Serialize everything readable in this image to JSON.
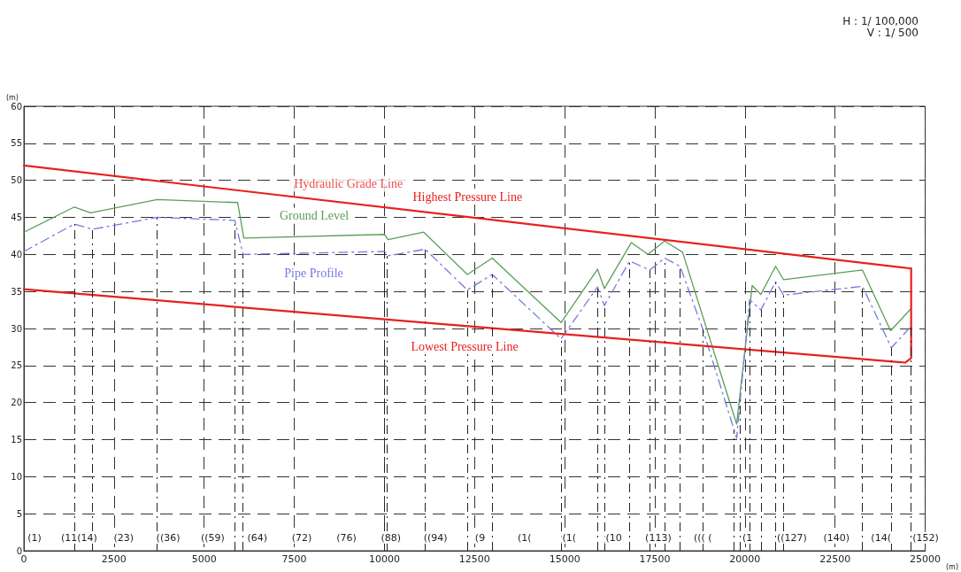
{
  "chart_data": {
    "type": "line",
    "xlabel": "(m)",
    "ylabel": "(m)",
    "xlim": [
      0,
      25000
    ],
    "xticks": [
      0,
      2500,
      5000,
      7500,
      10000,
      12500,
      15000,
      17500,
      20000,
      22500,
      25000
    ],
    "ylim": [
      0,
      60
    ],
    "yticks": [
      0,
      5,
      10,
      15,
      20,
      25,
      30,
      35,
      40,
      45,
      50,
      55,
      60
    ],
    "grid": true,
    "legend": false,
    "marker": "none",
    "series": [
      {
        "name": "Ground Level",
        "color": "#5a9e5a",
        "line_style": "solid",
        "x": [
          0,
          1400,
          1850,
          3700,
          5930,
          6100,
          10000,
          10100,
          11090,
          12300,
          12990,
          14900,
          15910,
          16100,
          16850,
          17310,
          17770,
          18270,
          19770,
          20200,
          20440,
          20850,
          21070,
          23260,
          24040,
          24590
        ],
        "values": [
          43,
          46.4,
          45.6,
          47.4,
          47.0,
          42.2,
          42.7,
          42.0,
          43.0,
          37.3,
          39.5,
          30.8,
          38.0,
          35.4,
          41.6,
          40.0,
          41.8,
          40.3,
          17.1,
          35.8,
          34.6,
          38.4,
          36.6,
          37.9,
          29.7,
          32.6
        ]
      },
      {
        "name": "Pipe Profile",
        "color": "#7878e0",
        "line_style": "dashed",
        "x": [
          0,
          1400,
          1900,
          3700,
          5850,
          6080,
          10000,
          10080,
          11130,
          12300,
          12990,
          14900,
          15910,
          16100,
          16800,
          17360,
          17770,
          18200,
          18830,
          19770,
          20130,
          20440,
          20850,
          21070,
          23260,
          24060,
          24610
        ],
        "values": [
          40.4,
          44.1,
          43.4,
          45.0,
          44.6,
          40.0,
          40.4,
          39.8,
          40.7,
          35.2,
          37.3,
          28.6,
          35.6,
          33.1,
          39.1,
          37.9,
          39.5,
          38.4,
          29.9,
          15.2,
          33.9,
          32.5,
          36.3,
          34.5,
          35.7,
          27.4,
          30.3
        ]
      },
      {
        "name": "Highest Pressure Line",
        "color": "#e8201e",
        "line_style": "solid",
        "x": [
          0,
          24610
        ],
        "values": [
          52.0,
          38.1
        ]
      },
      {
        "name": "Lowest Pressure Line",
        "color": "#e8201e",
        "line_style": "solid",
        "x": [
          0,
          24450,
          24610,
          24610
        ],
        "values": [
          35.3,
          25.4,
          26.0,
          38.1
        ]
      }
    ],
    "ref_lines": [
      {
        "axis": "x",
        "value": 1400,
        "line_style": "dashed"
      },
      {
        "axis": "x",
        "value": 1900,
        "line_style": "dashed"
      },
      {
        "axis": "x",
        "value": 3700,
        "line_style": "dashed"
      },
      {
        "axis": "x",
        "value": 5850,
        "line_style": "dashed"
      },
      {
        "axis": "x",
        "value": 6080,
        "line_style": "dashed"
      },
      {
        "axis": "x",
        "value": 10000,
        "line_style": "dashed"
      },
      {
        "axis": "x",
        "value": 10080,
        "line_style": "dashed"
      },
      {
        "axis": "x",
        "value": 11130,
        "line_style": "dashed"
      },
      {
        "axis": "x",
        "value": 12300,
        "line_style": "dashed"
      },
      {
        "axis": "x",
        "value": 12990,
        "line_style": "dashed"
      },
      {
        "axis": "x",
        "value": 14900,
        "line_style": "dashed"
      },
      {
        "axis": "x",
        "value": 15910,
        "line_style": "dashed"
      },
      {
        "axis": "x",
        "value": 16100,
        "line_style": "dashed"
      },
      {
        "axis": "x",
        "value": 16800,
        "line_style": "dashed"
      },
      {
        "axis": "x",
        "value": 17360,
        "line_style": "dashed"
      },
      {
        "axis": "x",
        "value": 17770,
        "line_style": "dashed"
      },
      {
        "axis": "x",
        "value": 18200,
        "line_style": "dashed"
      },
      {
        "axis": "x",
        "value": 18830,
        "line_style": "dashed"
      },
      {
        "axis": "x",
        "value": 19700,
        "line_style": "dashed"
      },
      {
        "axis": "x",
        "value": 19870,
        "line_style": "dashed"
      },
      {
        "axis": "x",
        "value": 20130,
        "line_style": "dashed"
      },
      {
        "axis": "x",
        "value": 20440,
        "line_style": "dashed"
      },
      {
        "axis": "x",
        "value": 20850,
        "line_style": "dashed"
      },
      {
        "axis": "x",
        "value": 21070,
        "line_style": "dashed"
      },
      {
        "axis": "x",
        "value": 23260,
        "line_style": "dashed"
      },
      {
        "axis": "x",
        "value": 24060,
        "line_style": "dashed"
      },
      {
        "axis": "x",
        "value": 24610,
        "line_style": "dashed"
      }
    ],
    "annotations": [
      "H : 1/ 100,000",
      "V : 1/ 500",
      {
        "text": "Hydraulic Grade Line",
        "x": 9000,
        "y": 46.9
      },
      "(1)",
      "(11(14)",
      "(23)",
      "((36)",
      "((59)",
      "(64)",
      "(72)",
      "(76)",
      "(88)",
      "((94)",
      "(9",
      "(1(",
      "(1(",
      "(10",
      "(113)",
      "((( (",
      "(1",
      "((127)",
      "(140)",
      "(14(",
      "(152)"
    ]
  }
}
